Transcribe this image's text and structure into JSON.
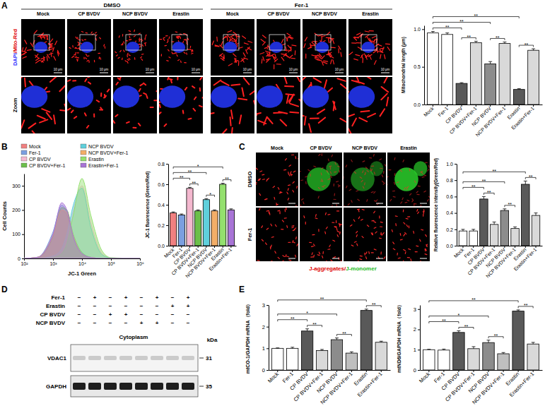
{
  "chart_data": [
    {
      "type": "bar",
      "categories": [
        "Mock",
        "Fer-1",
        "CP BVDV",
        "CP BVDV+Fer-1",
        "NCP BVDV",
        "NCP BVDV+Fer-1",
        "Erastin",
        "Erastin+Fer-1"
      ],
      "values": [
        0.95,
        0.93,
        0.28,
        0.82,
        0.54,
        0.81,
        0.2,
        0.72
      ],
      "errors": [
        0.02,
        0.02,
        0.01,
        0.02,
        0.03,
        0.02,
        0.01,
        0.02
      ],
      "colors": [
        "#ffffff",
        "#ffffff",
        "#595959",
        "#d9d9d9",
        "#8c8c8c",
        "#d9d9d9",
        "#595959",
        "#d9d9d9"
      ],
      "ylabel": "Mitochondrial length (μm)",
      "ylim": [
        0,
        1.05
      ],
      "yticks": [
        {
          "value": 0,
          "label": "0.0"
        },
        0.5,
        {
          "value": 1,
          "label": "1.0"
        }
      ],
      "annotations": [
        {
          "text": "**",
          "from": "Mock",
          "to": "CP BVDV"
        },
        {
          "text": "**",
          "from": "CP BVDV",
          "to": "CP BVDV+Fer-1"
        },
        {
          "text": "**",
          "from": "Mock",
          "to": "NCP BVDV"
        },
        {
          "text": "**",
          "from": "NCP BVDV",
          "to": "NCP BVDV+Fer-1"
        },
        {
          "text": "**",
          "from": "Mock",
          "to": "Erastin"
        },
        {
          "text": "**",
          "from": "Erastin",
          "to": "Erastin+Fer-1"
        }
      ]
    },
    {
      "type": "area",
      "log": "x",
      "legend": "top",
      "x": [
        100,
        300,
        1000,
        2000,
        3000,
        5000,
        10000,
        20000,
        50000,
        100000,
        1000000
      ],
      "series": [
        {
          "name": "Mock",
          "color": "#f08080",
          "values": [
            0,
            5,
            100,
            200,
            180,
            90,
            20,
            5,
            0,
            0,
            0
          ]
        },
        {
          "name": "Fer-1",
          "color": "#7b9fe0",
          "values": [
            0,
            5,
            110,
            220,
            190,
            80,
            15,
            3,
            0,
            0,
            0
          ]
        },
        {
          "name": "CP BVDV",
          "color": "#f4b8cf",
          "values": [
            0,
            0,
            5,
            30,
            80,
            200,
            300,
            150,
            20,
            2,
            0
          ]
        },
        {
          "name": "CP BVDV+Fer-1",
          "color": "#6cbf4a",
          "values": [
            0,
            5,
            90,
            210,
            200,
            100,
            25,
            5,
            0,
            0,
            0
          ]
        },
        {
          "name": "NCP BVDV",
          "color": "#5fd0dc",
          "values": [
            0,
            0,
            10,
            40,
            100,
            220,
            290,
            130,
            15,
            2,
            0
          ]
        },
        {
          "name": "NCP BVDV+Fer-1",
          "color": "#f3ae68",
          "values": [
            0,
            5,
            95,
            200,
            190,
            95,
            20,
            4,
            0,
            0,
            0
          ]
        },
        {
          "name": "Erastin",
          "color": "#94e06e",
          "values": [
            0,
            0,
            3,
            20,
            60,
            180,
            330,
            180,
            30,
            3,
            0
          ]
        },
        {
          "name": "Erastin+Fer-1",
          "color": "#a874d6",
          "values": [
            0,
            5,
            100,
            230,
            200,
            90,
            20,
            4,
            0,
            0,
            0
          ]
        }
      ],
      "xlabel": "JC-1 Green",
      "ylabel": "Cell Counts",
      "xlim": [
        100,
        1000000
      ],
      "xticks": [
        {
          "value": 100,
          "label": "10²"
        },
        {
          "value": 1000,
          "label": "10³"
        },
        {
          "value": 10000,
          "label": "10⁴"
        },
        {
          "value": 100000,
          "label": "10⁵"
        },
        {
          "value": 1000000,
          "label": "10⁶"
        }
      ],
      "ylim": [
        0,
        350
      ],
      "yticks": [
        0,
        100,
        200,
        300
      ]
    },
    {
      "type": "bar",
      "categories": [
        "Mock",
        "Fer-1",
        "CP BVDV",
        "CP BVDV+Fer-1",
        "NCP BVDV",
        "NCP BVDV+Fer-1",
        "Erastin",
        "Erastin+Fer-1"
      ],
      "values": [
        0.32,
        0.3,
        0.56,
        0.34,
        0.45,
        0.34,
        0.6,
        0.35
      ],
      "errors": [
        0.01,
        0.01,
        0.01,
        0.01,
        0.01,
        0.01,
        0.01,
        0.01
      ],
      "colors": [
        "#f08080",
        "#7b9fe0",
        "#f4b8cf",
        "#6cbf4a",
        "#5fd0dc",
        "#f3ae68",
        "#94e06e",
        "#a874d6"
      ],
      "ylabel": "JC-1 fluorescence (Green/Red)",
      "ylim": [
        0,
        0.8
      ],
      "yticks": [
        {
          "value": 0,
          "label": "0.0"
        },
        0.2,
        0.4,
        0.6,
        0.8
      ],
      "annotations": [
        {
          "text": "**",
          "from": "Mock",
          "to": "CP BVDV"
        },
        {
          "text": "**",
          "from": "CP BVDV",
          "to": "CP BVDV+Fer-1"
        },
        {
          "text": "**",
          "from": "Mock",
          "to": "NCP BVDV"
        },
        {
          "text": "*",
          "from": "NCP BVDV",
          "to": "NCP BVDV+Fer-1"
        },
        {
          "text": "*",
          "from": "Mock",
          "to": "Erastin"
        },
        {
          "text": "**",
          "from": "Erastin",
          "to": "Erastin+Fer-1"
        }
      ]
    },
    {
      "type": "bar",
      "categories": [
        "Mock",
        "Fer-1",
        "CP BVDV",
        "CP BVDV+Fer-1",
        "NCP BVDV",
        "NCP BVDV+Fer-1",
        "Erastin",
        "Erastin+Fer-1"
      ],
      "values": [
        0.18,
        0.18,
        0.57,
        0.26,
        0.43,
        0.21,
        0.75,
        0.37
      ],
      "errors": [
        0.02,
        0.02,
        0.03,
        0.03,
        0.02,
        0.02,
        0.04,
        0.03
      ],
      "colors": [
        "#ffffff",
        "#ffffff",
        "#595959",
        "#d9d9d9",
        "#8c8c8c",
        "#d9d9d9",
        "#595959",
        "#d9d9d9"
      ],
      "ylabel": "Relative fluorescence intensity(Green/Red)",
      "ylim": [
        0,
        1
      ],
      "yticks": [
        {
          "value": 0,
          "label": "0.0"
        },
        0.2,
        0.4,
        0.6,
        0.8,
        {
          "value": 1,
          "label": "1.0"
        }
      ],
      "annotations": [
        {
          "text": "**",
          "from": "Mock",
          "to": "CP BVDV"
        },
        {
          "text": "**",
          "from": "CP BVDV",
          "to": "CP BVDV+Fer-1"
        },
        {
          "text": "**",
          "from": "Mock",
          "to": "NCP BVDV"
        },
        {
          "text": "**",
          "from": "NCP BVDV",
          "to": "NCP BVDV+Fer-1"
        },
        {
          "text": "**",
          "from": "Mock",
          "to": "Erastin"
        },
        {
          "text": "**",
          "from": "Erastin",
          "to": "Erastin+Fer-1"
        }
      ]
    },
    {
      "type": "bar",
      "categories": [
        "Mock",
        "Fer-1",
        "CP BVDV",
        "CP BVDV+Fer-1",
        "NCP BVDV",
        "NCP BVDV+Fer-1",
        "Erastin",
        "Erastin+Fer-1"
      ],
      "values": [
        1.0,
        1.0,
        1.8,
        0.9,
        1.4,
        0.78,
        2.75,
        1.28
      ],
      "errors": [
        0.02,
        0.05,
        0.1,
        0.05,
        0.08,
        0.06,
        0.06,
        0.05
      ],
      "colors": [
        "#ffffff",
        "#ffffff",
        "#595959",
        "#d9d9d9",
        "#8c8c8c",
        "#bfbfbf",
        "#595959",
        "#d9d9d9"
      ],
      "ylabel": "mtCO-1/GAPDH mRNA（fold）",
      "ylim": [
        0,
        3
      ],
      "yticks": [
        0,
        1,
        2,
        3
      ],
      "annotations": [
        {
          "text": "**",
          "from": "Mock",
          "to": "CP BVDV"
        },
        {
          "text": "**",
          "from": "CP BVDV",
          "to": "CP BVDV+Fer-1"
        },
        {
          "text": "*",
          "from": "Mock",
          "to": "NCP BVDV"
        },
        {
          "text": "**",
          "from": "NCP BVDV",
          "to": "NCP BVDV+Fer-1"
        },
        {
          "text": "**",
          "from": "Mock",
          "to": "Erastin"
        },
        {
          "text": "**",
          "from": "Erastin",
          "to": "Erastin+Fer-1"
        }
      ]
    },
    {
      "type": "bar",
      "categories": [
        "Mock",
        "Fer-1",
        "CP BVDV",
        "CP BVDV+Fer-1",
        "NCP BVDV",
        "NCP BVDV+Fer-1",
        "Erastin",
        "Erastin+Fer-1"
      ],
      "values": [
        1.0,
        0.98,
        1.85,
        1.05,
        1.35,
        0.8,
        2.9,
        1.28
      ],
      "errors": [
        0.02,
        0.05,
        0.08,
        0.1,
        0.12,
        0.06,
        0.06,
        0.08
      ],
      "colors": [
        "#ffffff",
        "#ffffff",
        "#595959",
        "#d9d9d9",
        "#8c8c8c",
        "#bfbfbf",
        "#595959",
        "#d9d9d9"
      ],
      "ylabel": "mtND6/GAPDH mRNA（fold）",
      "ylim": [
        0,
        3.2
      ],
      "yticks": [
        0,
        1,
        2,
        3
      ],
      "annotations": [
        {
          "text": "**",
          "from": "Mock",
          "to": "CP BVDV"
        },
        {
          "text": "**",
          "from": "CP BVDV",
          "to": "CP BVDV+Fer-1"
        },
        {
          "text": "*",
          "from": "Mock",
          "to": "NCP BVDV"
        },
        {
          "text": "**",
          "from": "NCP BVDV",
          "to": "NCP BVDV+Fer-1"
        },
        {
          "text": "**",
          "from": "Mock",
          "to": "Erastin"
        },
        {
          "text": "**",
          "from": "Erastin",
          "to": "Erastin+Fer-1"
        }
      ]
    }
  ],
  "figure": {
    "panel_labels": [
      "A",
      "B",
      "C",
      "D",
      "E"
    ],
    "image_a": {
      "groups": [
        "DMSO",
        "Fer-1"
      ],
      "columns": [
        "Mock",
        "CP BVDV",
        "NCP BVDV",
        "Erastin"
      ],
      "row_labels": [
        [
          {
            "text": "DAPI",
            "color": "#2b2bff"
          },
          {
            "text": "/Mito-Red",
            "color": "#e00000"
          }
        ],
        [
          {
            "text": "Zoom",
            "color": "#000000"
          }
        ]
      ],
      "scale_bar": "10 μm"
    },
    "image_c": {
      "rows": [
        "DMSO",
        "Fer-1"
      ],
      "columns": [
        "Mock",
        "CP BVDV",
        "NCP BVDV",
        "Erastin"
      ],
      "legend": [
        {
          "text": "J-aggregates",
          "color": "#e00000"
        },
        {
          "text": "/",
          "color": "#e00000"
        },
        {
          "text": "J-monomer",
          "color": "#22bb22"
        }
      ]
    },
    "blot_d": {
      "treatments": [
        {
          "name": "Fer-1",
          "signs": [
            "−",
            "+",
            "−",
            "+",
            "−",
            "+",
            "−",
            "+"
          ]
        },
        {
          "name": "Erastin",
          "signs": [
            "−",
            "−",
            "−",
            "−",
            "−",
            "−",
            "+",
            "+"
          ]
        },
        {
          "name": "CP BVDV",
          "signs": [
            "−",
            "−",
            "+",
            "+",
            "−",
            "−",
            "−",
            "−"
          ]
        },
        {
          "name": "NCP BVDV",
          "signs": [
            "−",
            "−",
            "−",
            "−",
            "+",
            "+",
            "−",
            "−"
          ]
        }
      ],
      "compartment": "Cytoplasm",
      "unit": "kDa",
      "bands": [
        {
          "name": "VDAC1",
          "kda": 31
        },
        {
          "name": "GAPDH",
          "kda": 35
        }
      ]
    }
  }
}
